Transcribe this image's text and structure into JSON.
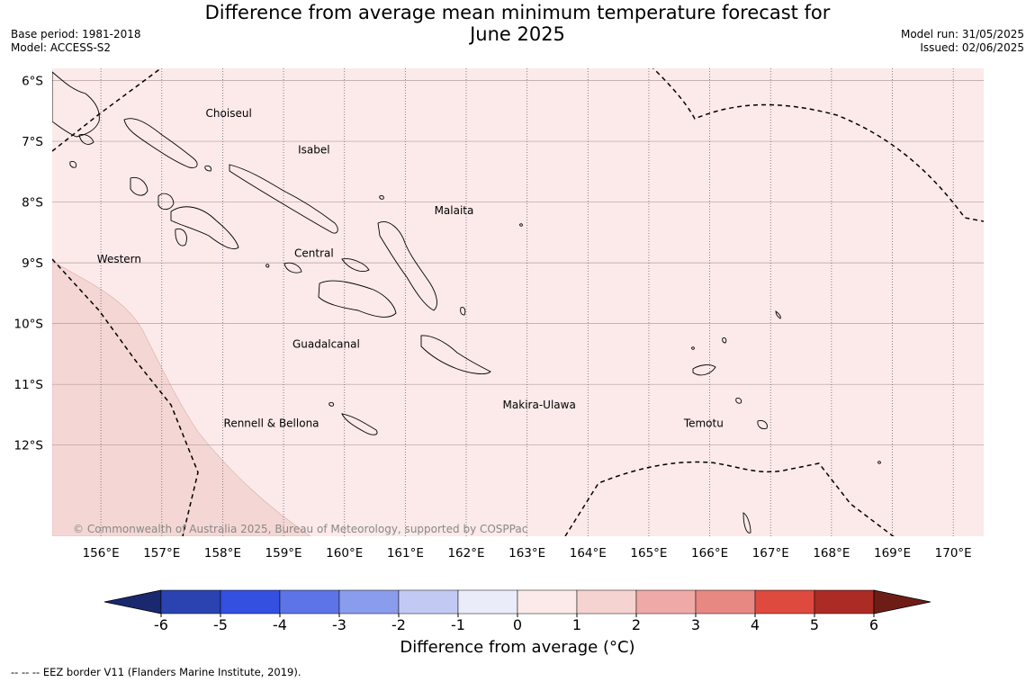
{
  "header": {
    "title_line1": "Difference from average mean minimum temperature forecast for",
    "title_line2": "June 2025",
    "base_period": "Base period: 1981-2018",
    "model": "Model: ACCESS-S2",
    "model_run": "Model run: 31/05/2025",
    "issued": "Issued: 02/06/2025"
  },
  "map": {
    "lon_range": [
      155.2,
      170.5
    ],
    "lat_range": [
      -13.5,
      -5.8
    ],
    "lat_ticks": [
      {
        "value": -6,
        "label": "6°S"
      },
      {
        "value": -7,
        "label": "7°S"
      },
      {
        "value": -8,
        "label": "8°S"
      },
      {
        "value": -9,
        "label": "9°S"
      },
      {
        "value": -10,
        "label": "10°S"
      },
      {
        "value": -11,
        "label": "11°S"
      },
      {
        "value": -12,
        "label": "12°S"
      }
    ],
    "lon_ticks": [
      {
        "value": 156,
        "label": "156°E"
      },
      {
        "value": 157,
        "label": "157°E"
      },
      {
        "value": 158,
        "label": "158°E"
      },
      {
        "value": 159,
        "label": "159°E"
      },
      {
        "value": 160,
        "label": "160°E"
      },
      {
        "value": 161,
        "label": "161°E"
      },
      {
        "value": 162,
        "label": "162°E"
      },
      {
        "value": 163,
        "label": "163°E"
      },
      {
        "value": 164,
        "label": "164°E"
      },
      {
        "value": 165,
        "label": "165°E"
      },
      {
        "value": 166,
        "label": "166°E"
      },
      {
        "value": 167,
        "label": "167°E"
      },
      {
        "value": 168,
        "label": "168°E"
      },
      {
        "value": 169,
        "label": "169°E"
      },
      {
        "value": 170,
        "label": "170°E"
      }
    ],
    "background_class": "0 to 1",
    "anomaly_zones": [
      {
        "class": "1 to 2",
        "region": "south-west corner"
      }
    ],
    "province_labels": [
      {
        "name": "Choiseul",
        "lon": 158.1,
        "lat": -6.6
      },
      {
        "name": "Isabel",
        "lon": 159.5,
        "lat": -7.2
      },
      {
        "name": "Malaita",
        "lon": 161.8,
        "lat": -8.2
      },
      {
        "name": "Western",
        "lon": 156.3,
        "lat": -9.0
      },
      {
        "name": "Central",
        "lon": 159.5,
        "lat": -8.9
      },
      {
        "name": "Guadalcanal",
        "lon": 159.7,
        "lat": -10.4
      },
      {
        "name": "Makira-Ulawa",
        "lon": 163.2,
        "lat": -11.4
      },
      {
        "name": "Rennell & Bellona",
        "lon": 158.8,
        "lat": -11.7
      },
      {
        "name": "Temotu",
        "lon": 165.9,
        "lat": -11.7
      }
    ],
    "copyright": "© Commonwealth of Australia 2025, Bureau of Meteorology, supported by COSPPac"
  },
  "colorbar": {
    "ticks": [
      "-6",
      "-5",
      "-4",
      "-3",
      "-2",
      "-1",
      "0",
      "1",
      "2",
      "3",
      "4",
      "5",
      "6"
    ],
    "colors": [
      "#1a2870",
      "#2a43b0",
      "#3350e0",
      "#5c74e6",
      "#8a9cec",
      "#c2caf4",
      "#eaecfa",
      "#fbeae9",
      "#f5d3d0",
      "#efaaa7",
      "#e78883",
      "#de4a3d",
      "#ac2b24",
      "#6e1d16"
    ],
    "label": "Difference from average (°C)"
  },
  "footnote": "--  --  -- EEZ border V11 (Flanders Marine Institute, 2019)."
}
